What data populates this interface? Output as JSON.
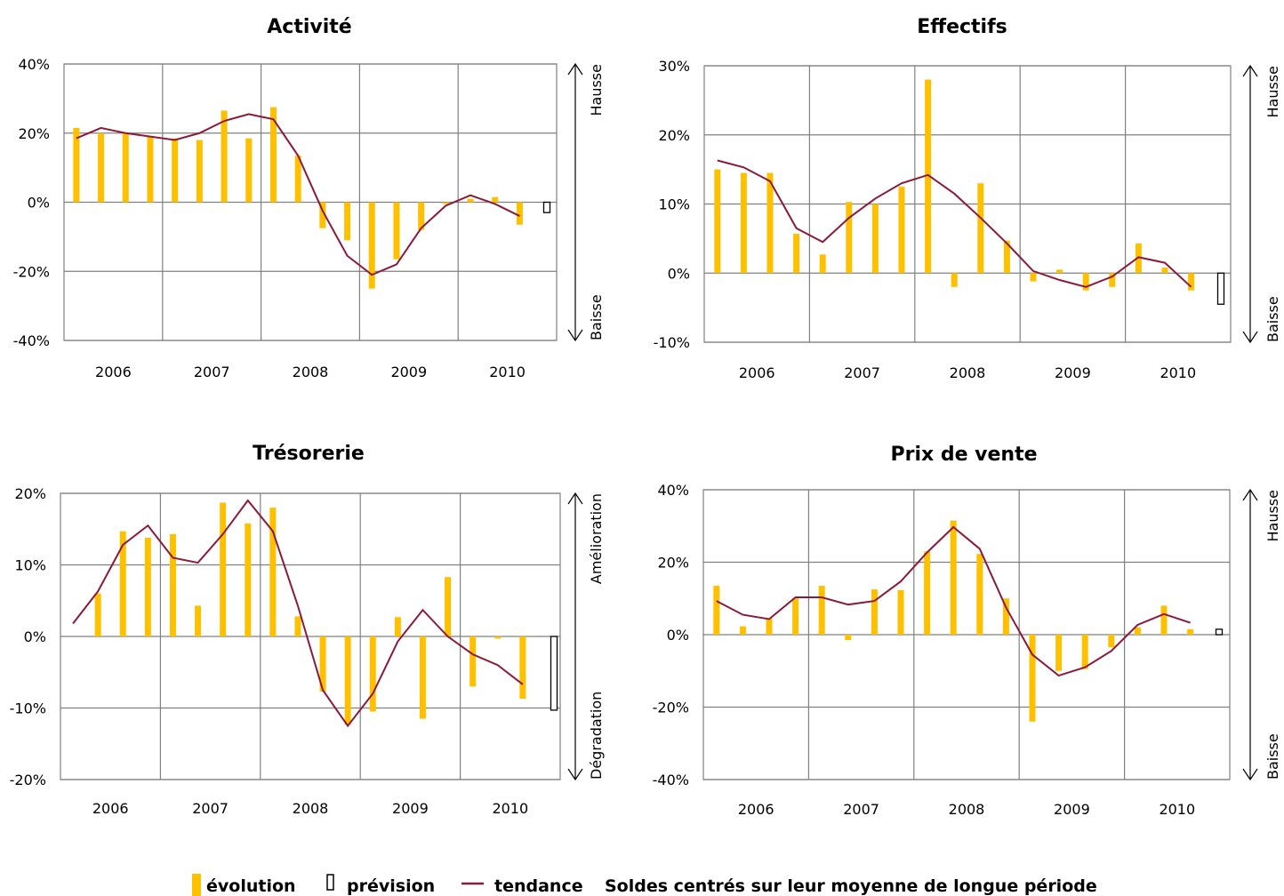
{
  "legend": {
    "evolution": "évolution",
    "prevision": "prévision",
    "tendance": "tendance",
    "note": "Soldes centrés sur leur moyenne de longue période"
  },
  "colors": {
    "bar": "#FFC000",
    "trend": "#8B1A3A",
    "grid": "#808080"
  },
  "chart_data": [
    {
      "type": "bar",
      "title": "Activité",
      "x_years": [
        "2006",
        "2007",
        "2008",
        "2009",
        "2010"
      ],
      "ylim": [
        -40,
        40
      ],
      "yticks": [
        -40,
        -20,
        0,
        20,
        40
      ],
      "ytick_labels": [
        "-40%",
        "-20%",
        "0%",
        "20%",
        "40%"
      ],
      "side_up": "Hausse",
      "side_down": "Baisse",
      "bars": [
        21.5,
        20,
        20,
        19,
        18.5,
        18,
        26.5,
        18.5,
        27.5,
        13.5,
        -7.5,
        -11,
        -25,
        -16.5,
        -8,
        -0.5,
        1,
        1.5,
        -6.5
      ],
      "trend": [
        18.5,
        21.5,
        20,
        19,
        18,
        20,
        23.5,
        25.5,
        24,
        13.5,
        -2.5,
        -15.5,
        -21,
        -18,
        -7.5,
        -1,
        2,
        -0.5,
        -4
      ],
      "forecast": -3
    },
    {
      "type": "bar",
      "title": "Effectifs",
      "x_years": [
        "2006",
        "2007",
        "2008",
        "2009",
        "2010"
      ],
      "ylim": [
        -10,
        30
      ],
      "yticks": [
        -10,
        0,
        10,
        20,
        30
      ],
      "ytick_labels": [
        "-10%",
        "0%",
        "10%",
        "20%",
        "30%"
      ],
      "side_up": "Hausse",
      "side_down": "Baisse",
      "bars": [
        15,
        14.5,
        14.5,
        5.7,
        2.7,
        10.3,
        10,
        12.5,
        28,
        -2,
        13,
        4.7,
        -1.2,
        0.5,
        -2.5,
        -2,
        4.3,
        0.8,
        -2.5
      ],
      "trend": [
        16.3,
        15.3,
        13.3,
        6.5,
        4.5,
        8,
        10.8,
        13,
        14.2,
        11.5,
        8,
        4.3,
        0.3,
        -1,
        -2,
        -0.5,
        2.3,
        1.5,
        -2
      ],
      "forecast": -4.5
    },
    {
      "type": "bar",
      "title": "Trésorerie",
      "x_years": [
        "2006",
        "2007",
        "2008",
        "2009",
        "2010"
      ],
      "ylim": [
        -20,
        20
      ],
      "yticks": [
        -20,
        -10,
        0,
        10,
        20
      ],
      "ytick_labels": [
        "-20%",
        "-10%",
        "0%",
        "10%",
        "20%"
      ],
      "side_up": "Amélioration",
      "side_down": "Dégradation",
      "bars": [
        null,
        6,
        14.7,
        13.8,
        14.3,
        4.3,
        18.7,
        15.8,
        18,
        2.8,
        -7.7,
        -12.3,
        -10.5,
        2.7,
        -11.5,
        8.3,
        -7,
        -0.3,
        -8.7
      ],
      "trend": [
        1.8,
        6.3,
        12.8,
        15.5,
        11,
        10.3,
        14.3,
        19,
        14.7,
        4.3,
        -7.5,
        -12.5,
        -8,
        -0.7,
        3.7,
        0,
        -2.5,
        -4,
        -6.7
      ],
      "forecast": -10.3
    },
    {
      "type": "bar",
      "title": "Prix de vente",
      "x_years": [
        "2006",
        "2007",
        "2008",
        "2009",
        "2010"
      ],
      "ylim": [
        -40,
        40
      ],
      "yticks": [
        -40,
        -20,
        0,
        20,
        40
      ],
      "ytick_labels": [
        "-40%",
        "-20%",
        "0%",
        "20%",
        "40%"
      ],
      "side_up": "Hausse",
      "side_down": "Baisse",
      "bars": [
        13.5,
        2.3,
        4.5,
        10,
        13.5,
        -1.5,
        12.5,
        12.3,
        23,
        31.5,
        22.3,
        10,
        -24,
        -10,
        -9.5,
        -3.5,
        2,
        8,
        1.5
      ],
      "trend": [
        9.3,
        5.5,
        4.3,
        10.3,
        10.3,
        8.3,
        9.3,
        14.7,
        22.7,
        29.7,
        23.7,
        7.5,
        -5.5,
        -11.3,
        -9,
        -4.5,
        2.7,
        5.7,
        3.3
      ],
      "forecast": 1.5
    }
  ]
}
